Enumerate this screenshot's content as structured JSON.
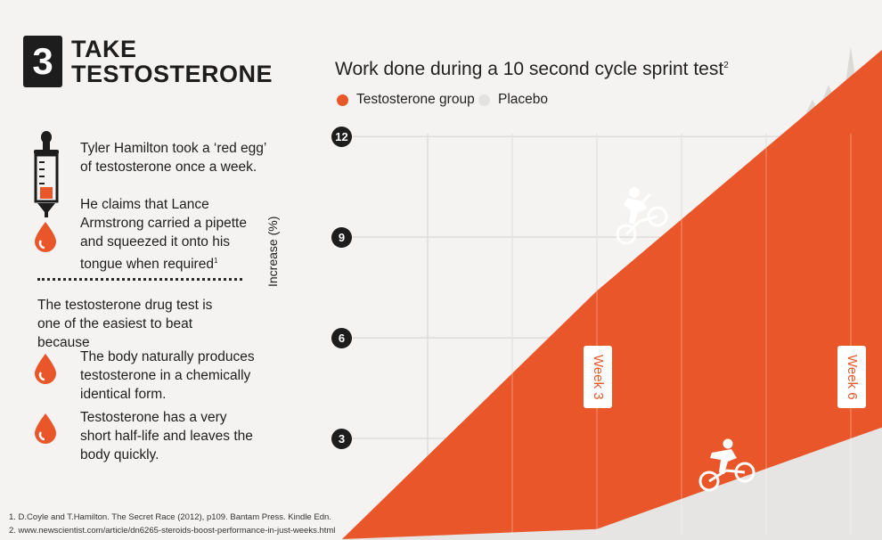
{
  "header": {
    "number": "3",
    "line1": "TAKE",
    "line2": "TESTOSTERONE"
  },
  "left": {
    "p1": "Tyler Hamilton took a ‘red egg’ of testosterone once a week.",
    "p2": "He claims that Lance Armstrong carried a pipette and squeezed it onto his tongue when required",
    "p2_ref": "1",
    "p3": "The testosterone drug test is one of the easiest to beat because",
    "b1": "The body naturally produces testosterone in a chemically identical form.",
    "b2": "Testosterone has a very short half-life and leaves the body quickly."
  },
  "footnotes": [
    "1. D.Coyle and T.Hamilton. The Secret Race (2012), p109. Bantam Press. Kindle Edn.",
    "2. www.newscientist.com/article/dn6265-steroids-boost-performance-in-just-weeks.html"
  ],
  "colors": {
    "testosterone": "#e8562a",
    "placebo": "#e6e5e3",
    "dark": "#1d1d1d"
  },
  "icons": [
    "dropper-icon",
    "drop-icon",
    "cyclist-icon",
    "tree-icon"
  ],
  "chart_data": {
    "type": "area",
    "title": "Work done during a 10 second cycle sprint test",
    "title_ref": "2",
    "ylabel": "Increase (%)",
    "yticks": [
      "3",
      "6",
      "9",
      "12"
    ],
    "ylim": [
      0,
      12
    ],
    "grid": true,
    "legend": "top",
    "x_markers": [
      "Week 3",
      "Week 6"
    ],
    "x": [
      0,
      3,
      6
    ],
    "series": [
      {
        "name": "Testosterone group",
        "values": [
          0,
          7.4,
          13.8
        ]
      },
      {
        "name": "Placebo",
        "values": [
          0,
          0.3,
          3.0
        ]
      }
    ]
  }
}
